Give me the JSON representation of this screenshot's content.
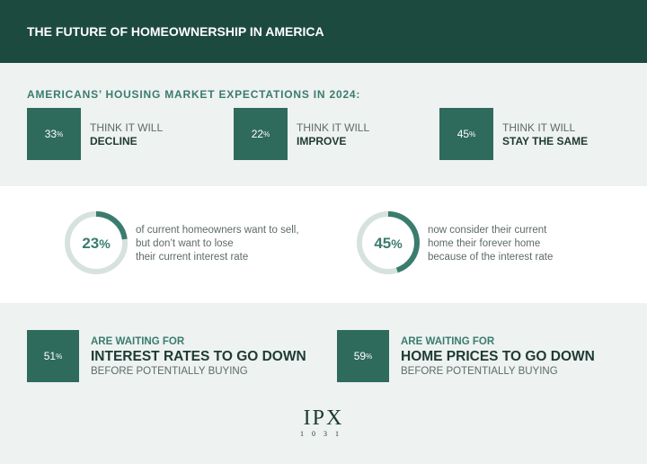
{
  "header": {
    "title": "THE FUTURE OF HOMEOWNERSHIP IN AMERICA"
  },
  "expectations": {
    "title": "AMERICANS’ HOUSING MARKET EXPECTATIONS IN 2024:",
    "items": [
      {
        "value": 33,
        "unit": "%",
        "lead": "THINK IT WILL",
        "outcome": "DECLINE"
      },
      {
        "value": 22,
        "unit": "%",
        "lead": "THINK IT WILL",
        "outcome": "IMPROVE"
      },
      {
        "value": 45,
        "unit": "%",
        "lead": "THINK IT WILL",
        "outcome": "STAY THE SAME"
      }
    ]
  },
  "donuts": [
    {
      "value": 23,
      "unit": "%",
      "lines": [
        "of current homeowners want to sell,",
        "but don’t want to lose",
        "their current interest rate"
      ]
    },
    {
      "value": 45,
      "unit": "%",
      "lines": [
        "now consider their current",
        "home their forever home",
        "because of the interest rate"
      ]
    }
  ],
  "waiting": [
    {
      "value": 51,
      "unit": "%",
      "lead": "ARE WAITING FOR",
      "headline": "INTEREST RATES TO GO DOWN",
      "tail": "BEFORE POTENTIALLY BUYING"
    },
    {
      "value": 59,
      "unit": "%",
      "lead": "ARE WAITING FOR",
      "headline": "HOME PRICES TO GO DOWN",
      "tail": "BEFORE POTENTIALLY BUYING"
    }
  ],
  "logo": {
    "name": "IPX",
    "number": "1031"
  }
}
